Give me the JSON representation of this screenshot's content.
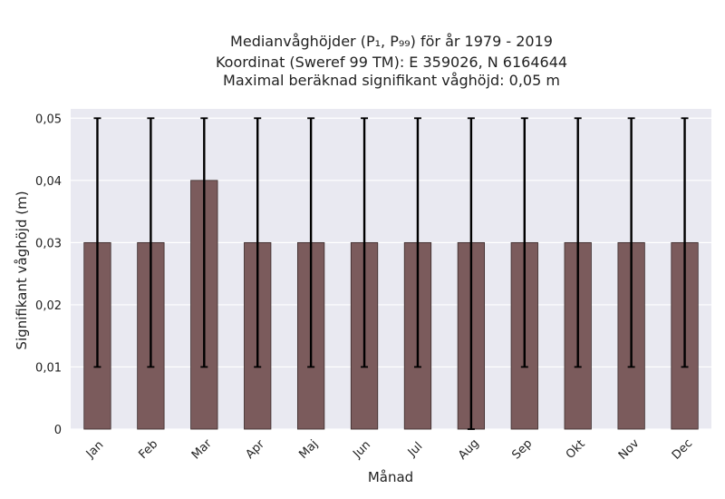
{
  "chart_data": {
    "type": "bar",
    "title_lines": [
      "Medianvåghöjder (P₁, P₉₉) för år 1979 - 2019",
      "Koordinat (Sweref 99 TM): E 359026, N 6164644",
      "Maximal beräknad signifikant våghöjd: 0,05 m"
    ],
    "xlabel": "Månad",
    "ylabel": "Signifikant våghöjd (m)",
    "categories": [
      "Jan",
      "Feb",
      "Mar",
      "Apr",
      "Maj",
      "Jun",
      "Jul",
      "Aug",
      "Sep",
      "Okt",
      "Nov",
      "Dec"
    ],
    "values": [
      0.03,
      0.03,
      0.04,
      0.03,
      0.03,
      0.03,
      0.03,
      0.03,
      0.03,
      0.03,
      0.03,
      0.03
    ],
    "error_low": [
      0.01,
      0.01,
      0.01,
      0.01,
      0.01,
      0.01,
      0.01,
      0.0,
      0.01,
      0.01,
      0.01,
      0.01
    ],
    "error_high": [
      0.05,
      0.05,
      0.05,
      0.05,
      0.05,
      0.05,
      0.05,
      0.05,
      0.05,
      0.05,
      0.05,
      0.05
    ],
    "ylim": [
      0,
      0.0515
    ],
    "yticks": [
      0,
      0.01,
      0.02,
      0.03,
      0.04,
      0.05
    ],
    "ytick_labels": [
      "0",
      "0,01",
      "0,02",
      "0,03",
      "0,04",
      "0,05"
    ],
    "grid": true,
    "legend": "none",
    "colors": {
      "bar": "#7b5b5c",
      "bar_edge": "#3a2a2a",
      "background": "#e9e9f1",
      "grid": "#ffffff",
      "error": "#000000"
    }
  }
}
